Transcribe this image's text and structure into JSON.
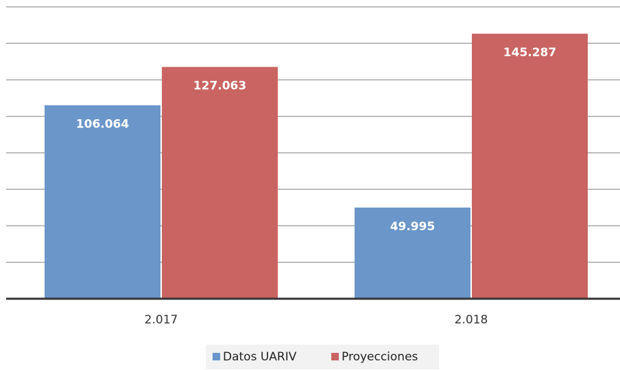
{
  "chart_data": {
    "type": "bar",
    "categories": [
      "2.017",
      "2.018"
    ],
    "series": [
      {
        "name": "Datos UARIV",
        "color": "#6a96c9",
        "values": [
          106064,
          49995
        ],
        "value_labels": [
          "106.064",
          "49.995"
        ]
      },
      {
        "name": "Proyecciones",
        "color": "#c96462",
        "values": [
          127063,
          145287
        ],
        "value_labels": [
          "127.063",
          "145.287"
        ]
      }
    ],
    "ylim": [
      0,
      160000
    ],
    "yticks": [
      0,
      20000,
      40000,
      60000,
      80000,
      100000,
      120000,
      140000,
      160000
    ],
    "grid": true
  }
}
